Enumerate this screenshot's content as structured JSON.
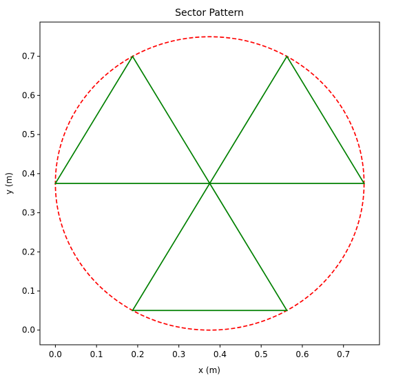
{
  "chart_data": {
    "type": "line",
    "title": "Sector Pattern",
    "xlabel": "x (m)",
    "ylabel": "y (m)",
    "xlim": [
      -0.0375,
      0.7875
    ],
    "ylim": [
      -0.0375,
      0.7875
    ],
    "grid": false,
    "legend": "none",
    "x_ticks": [
      0.0,
      0.1,
      0.2,
      0.3,
      0.4,
      0.5,
      0.6,
      0.7
    ],
    "x_tick_labels": [
      "0.0",
      "0.1",
      "0.2",
      "0.3",
      "0.4",
      "0.5",
      "0.6",
      "0.7"
    ],
    "y_ticks": [
      0.0,
      0.1,
      0.2,
      0.3,
      0.4,
      0.5,
      0.6,
      0.7
    ],
    "y_tick_labels": [
      "0.0",
      "0.1",
      "0.2",
      "0.3",
      "0.4",
      "0.5",
      "0.6",
      "0.7"
    ],
    "series": [
      {
        "kind": "circle",
        "style": "dashed",
        "color": "#ff0000",
        "center": [
          0.375,
          0.375
        ],
        "radius": 0.375
      },
      {
        "kind": "polyline",
        "style": "solid",
        "color": "#008000",
        "x": [
          0.375,
          0.75,
          0.5625,
          0.375,
          0.1875,
          0.0,
          0.375,
          0.1875,
          0.5625,
          0.375
        ],
        "y": [
          0.375,
          0.375,
          0.6998,
          0.375,
          0.6998,
          0.375,
          0.375,
          0.0502,
          0.0502,
          0.375
        ]
      }
    ]
  }
}
